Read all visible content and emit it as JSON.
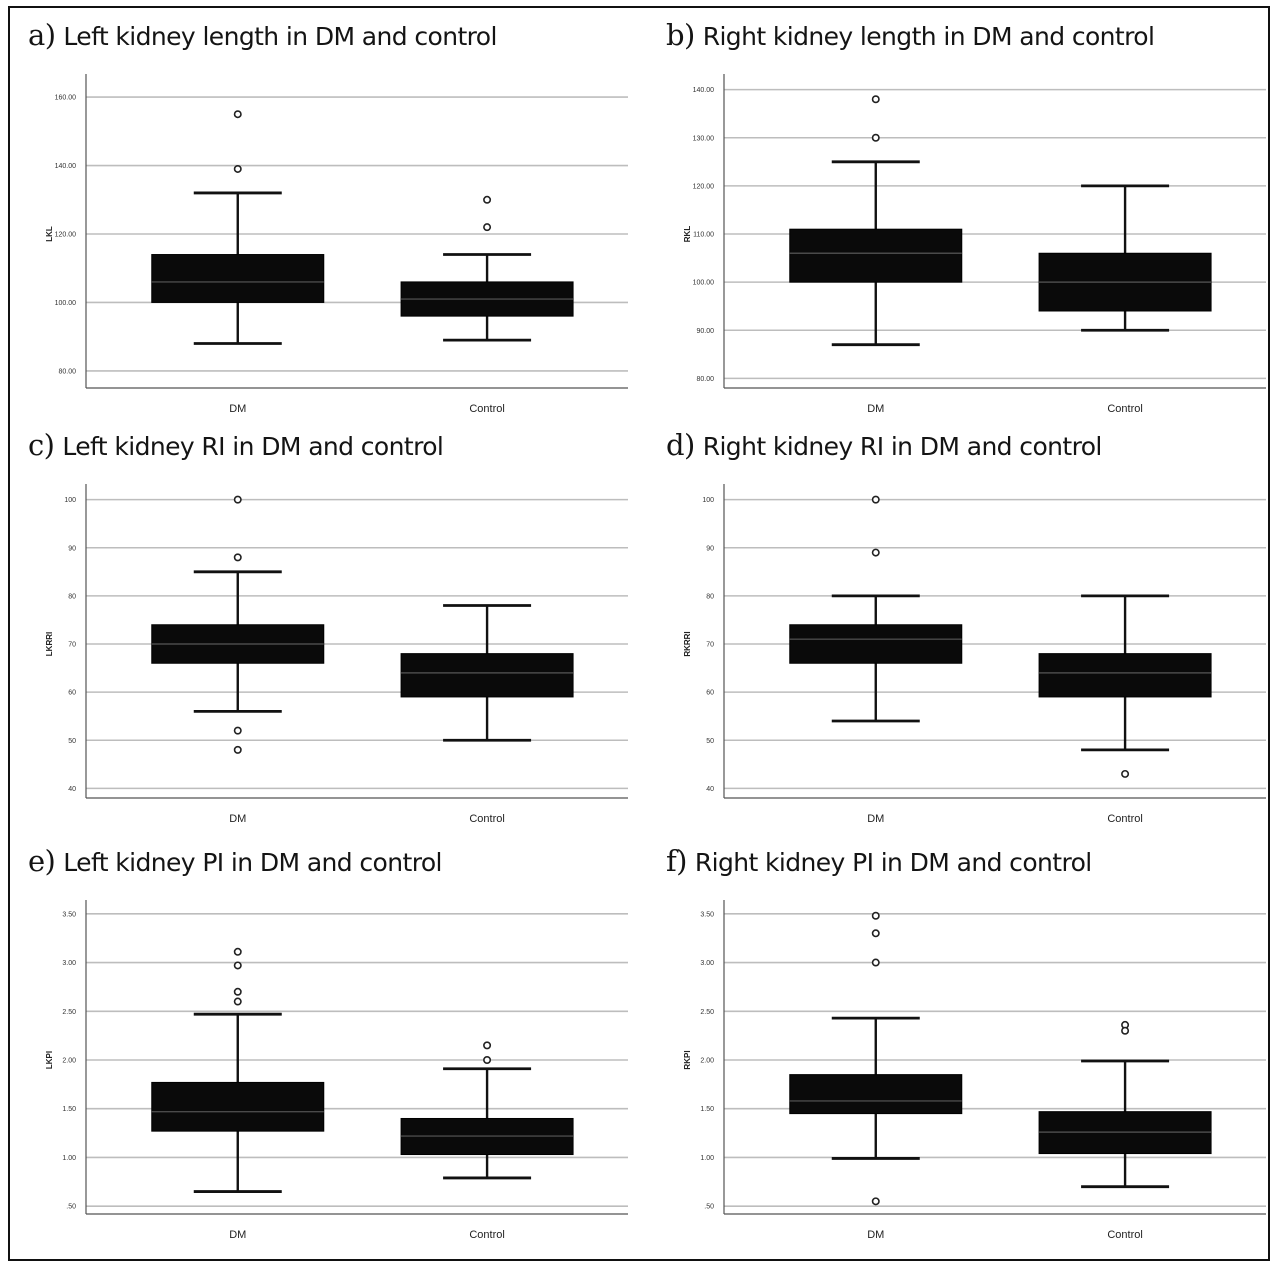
{
  "chart_data": [
    {
      "type": "box",
      "letter": "a)",
      "title": "Left kidney length in DM and control",
      "ylabel": "LKL",
      "ylim": [
        75,
        165
      ],
      "yticks": [
        80,
        100,
        120,
        140,
        160
      ],
      "ytick_labels": [
        "80.00",
        "100.00",
        "120.00",
        "140.00",
        "160.00"
      ],
      "categories": [
        "DM",
        "Control"
      ],
      "boxes": [
        {
          "whislo": 88,
          "q1": 100,
          "med": 106,
          "q3": 114,
          "whishi": 132,
          "fliers": [
            155,
            139
          ]
        },
        {
          "whislo": 89,
          "q1": 96,
          "med": 101,
          "q3": 106,
          "whishi": 114,
          "fliers": [
            130,
            122
          ]
        }
      ]
    },
    {
      "type": "box",
      "letter": "b)",
      "title": "Right kidney length in DM and control",
      "ylabel": "RKL",
      "ylim": [
        78,
        142
      ],
      "yticks": [
        80,
        90,
        100,
        110,
        120,
        130,
        140
      ],
      "ytick_labels": [
        "80.00",
        "90.00",
        "100.00",
        "110.00",
        "120.00",
        "130.00",
        "140.00"
      ],
      "categories": [
        "DM",
        "Control"
      ],
      "boxes": [
        {
          "whislo": 87,
          "q1": 100,
          "med": 106,
          "q3": 111,
          "whishi": 125,
          "fliers": [
            138,
            130
          ]
        },
        {
          "whislo": 90,
          "q1": 94,
          "med": 100,
          "q3": 106,
          "whishi": 120,
          "fliers": []
        }
      ]
    },
    {
      "type": "box",
      "letter": "c)",
      "title": "Left kidney RI in DM and control",
      "ylabel": "LKRRI",
      "ylim": [
        38,
        102
      ],
      "yticks": [
        40,
        50,
        60,
        70,
        80,
        90,
        100
      ],
      "ytick_labels": [
        "40",
        "50",
        "60",
        "70",
        "80",
        "90",
        "100"
      ],
      "categories": [
        "DM",
        "Control"
      ],
      "boxes": [
        {
          "whislo": 56,
          "q1": 66,
          "med": 70,
          "q3": 74,
          "whishi": 85,
          "fliers": [
            100,
            88,
            52,
            48
          ]
        },
        {
          "whislo": 50,
          "q1": 59,
          "med": 64,
          "q3": 68,
          "whishi": 78,
          "fliers": []
        }
      ]
    },
    {
      "type": "box",
      "letter": "d)",
      "title": "Right kidney RI in DM and control",
      "ylabel": "RKRRI",
      "ylim": [
        38,
        102
      ],
      "yticks": [
        40,
        50,
        60,
        70,
        80,
        90,
        100
      ],
      "ytick_labels": [
        "40",
        "50",
        "60",
        "70",
        "80",
        "90",
        "100"
      ],
      "categories": [
        "DM",
        "Control"
      ],
      "boxes": [
        {
          "whislo": 54,
          "q1": 66,
          "med": 71,
          "q3": 74,
          "whishi": 80,
          "fliers": [
            100,
            89
          ]
        },
        {
          "whislo": 48,
          "q1": 59,
          "med": 64,
          "q3": 68,
          "whishi": 80,
          "fliers": [
            43
          ]
        }
      ]
    },
    {
      "type": "box",
      "letter": "e)",
      "title": "Left kidney PI in DM and control",
      "ylabel": "LKPI",
      "ylim": [
        0.42,
        3.58
      ],
      "yticks": [
        0.5,
        1.0,
        1.5,
        2.0,
        2.5,
        3.0,
        3.5
      ],
      "ytick_labels": [
        ".50",
        "1.00",
        "1.50",
        "2.00",
        "2.50",
        "3.00",
        "3.50"
      ],
      "categories": [
        "DM",
        "Control"
      ],
      "boxes": [
        {
          "whislo": 0.65,
          "q1": 1.27,
          "med": 1.47,
          "q3": 1.77,
          "whishi": 2.47,
          "fliers": [
            3.11,
            2.97,
            2.7,
            2.6
          ]
        },
        {
          "whislo": 0.79,
          "q1": 1.03,
          "med": 1.22,
          "q3": 1.4,
          "whishi": 1.91,
          "fliers": [
            2.15,
            2.0
          ]
        }
      ]
    },
    {
      "type": "box",
      "letter": "f)",
      "title": "Right kidney PI in DM and control",
      "ylabel": "RKPI",
      "ylim": [
        0.42,
        3.58
      ],
      "yticks": [
        0.5,
        1.0,
        1.5,
        2.0,
        2.5,
        3.0,
        3.5
      ],
      "ytick_labels": [
        ".50",
        "1.00",
        "1.50",
        "2.00",
        "2.50",
        "3.00",
        "3.50"
      ],
      "categories": [
        "DM",
        "Control"
      ],
      "boxes": [
        {
          "whislo": 0.99,
          "q1": 1.45,
          "med": 1.58,
          "q3": 1.85,
          "whishi": 2.43,
          "fliers": [
            3.48,
            3.3,
            3.0,
            0.55
          ]
        },
        {
          "whislo": 0.7,
          "q1": 1.04,
          "med": 1.26,
          "q3": 1.47,
          "whishi": 1.99,
          "fliers": [
            2.36,
            2.3
          ]
        }
      ]
    }
  ]
}
